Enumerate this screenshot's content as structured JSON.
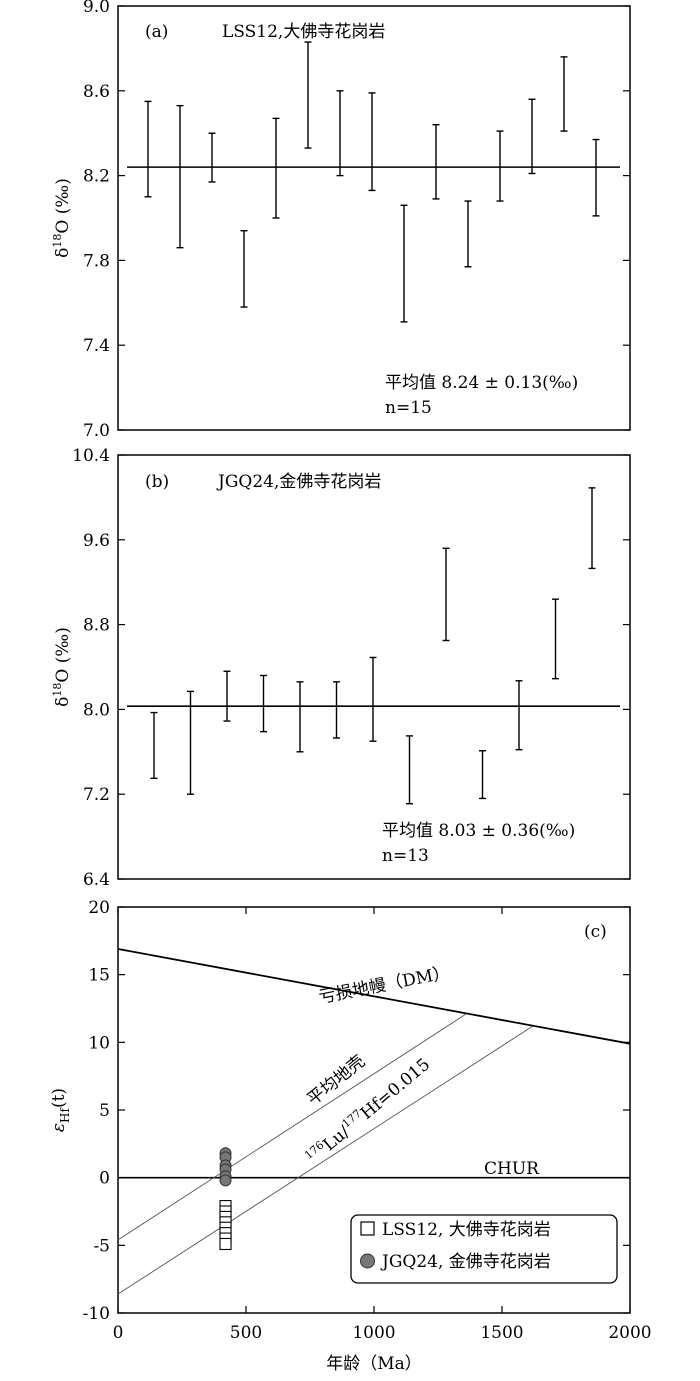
{
  "chart_data": [
    {
      "type": "errorbar",
      "panel": "(a)",
      "title": "LSS12,大佛寺花岗岩",
      "ylabel_main": "δ",
      "ylabel_sup": "18",
      "ylabel_rest": "O (‰)",
      "ylim": [
        7.0,
        9.0
      ],
      "yticks": [
        "7.0",
        "7.4",
        "7.8",
        "8.2",
        "8.6",
        "9.0"
      ],
      "mean_line": 8.24,
      "stats_label": "平均值  8.24 ± 0.13(‰)",
      "n_label": "n=15",
      "points": [
        {
          "low": 8.1,
          "high": 8.55
        },
        {
          "low": 7.86,
          "high": 8.53
        },
        {
          "low": 8.17,
          "high": 8.4
        },
        {
          "low": 7.58,
          "high": 7.94
        },
        {
          "low": 8.0,
          "high": 8.47
        },
        {
          "low": 8.33,
          "high": 8.83
        },
        {
          "low": 8.2,
          "high": 8.6
        },
        {
          "low": 8.13,
          "high": 8.59
        },
        {
          "low": 7.51,
          "high": 8.06
        },
        {
          "low": 8.09,
          "high": 8.44
        },
        {
          "low": 7.77,
          "high": 8.08
        },
        {
          "low": 8.08,
          "high": 8.41
        },
        {
          "low": 8.21,
          "high": 8.56
        },
        {
          "low": 8.41,
          "high": 8.76
        },
        {
          "low": 8.01,
          "high": 8.37
        }
      ]
    },
    {
      "type": "errorbar",
      "panel": "(b)",
      "title": "JGQ24,金佛寺花岗岩",
      "ylabel_main": "δ",
      "ylabel_sup": "18",
      "ylabel_rest": "O (‰)",
      "ylim": [
        6.4,
        10.4
      ],
      "yticks": [
        "6.4",
        "7.2",
        "8.0",
        "8.8",
        "9.6",
        "10.4"
      ],
      "mean_line": 8.03,
      "stats_label": "平均值  8.03 ± 0.36(‰)",
      "n_label": "n=13",
      "points": [
        {
          "low": 7.35,
          "high": 7.97
        },
        {
          "low": 7.2,
          "high": 8.17
        },
        {
          "low": 7.89,
          "high": 8.36
        },
        {
          "low": 7.79,
          "high": 8.32
        },
        {
          "low": 7.6,
          "high": 8.26
        },
        {
          "low": 7.73,
          "high": 8.26
        },
        {
          "low": 7.7,
          "high": 8.49
        },
        {
          "low": 7.11,
          "high": 7.75
        },
        {
          "low": 8.65,
          "high": 9.52
        },
        {
          "low": 7.16,
          "high": 7.61
        },
        {
          "low": 7.62,
          "high": 8.27
        },
        {
          "low": 8.29,
          "high": 9.04
        },
        {
          "low": 9.33,
          "high": 10.09
        }
      ]
    },
    {
      "type": "scatter",
      "panel": "(c)",
      "xlabel": "年龄（Ma）",
      "ylabel_main": "ε",
      "ylabel_sub": "Hf",
      "ylabel_rest": "(t)",
      "xlim": [
        0,
        2000
      ],
      "ylim": [
        -10,
        20
      ],
      "xticks": [
        "0",
        "500",
        "1000",
        "1500",
        "2000"
      ],
      "yticks": [
        "-10",
        "-5",
        "0",
        "5",
        "10",
        "15",
        "20"
      ],
      "dm_line": {
        "label": "亏损地幔（DM）",
        "x": [
          0,
          2000
        ],
        "y": [
          16.9,
          9.9
        ]
      },
      "chur_line": {
        "label": "CHUR",
        "y": 0
      },
      "crust_line": {
        "label": "平均地壳",
        "x": [
          0,
          1360
        ],
        "y": [
          -4.6,
          12.1
        ]
      },
      "lu_hf_line": {
        "label_pre": "176",
        "label_a": "Lu/",
        "label_sup2": "177",
        "label_b": "Hf=0.015",
        "x": [
          0,
          1620
        ],
        "y": [
          -8.6,
          11.2
        ]
      },
      "series": [
        {
          "name": "LSS12, 大佛寺花岗岩",
          "marker": "square",
          "x": 420,
          "y": [
            -2.1,
            -2.5,
            -2.9,
            -3.3,
            -3.7,
            -4.1,
            -4.5,
            -4.9
          ]
        },
        {
          "name": "JGQ24, 金佛寺花岗岩",
          "marker": "circle",
          "color": "#777777",
          "x": 420,
          "y": [
            1.8,
            1.5,
            0.9,
            0.6,
            0.1,
            -0.2
          ]
        }
      ]
    }
  ]
}
